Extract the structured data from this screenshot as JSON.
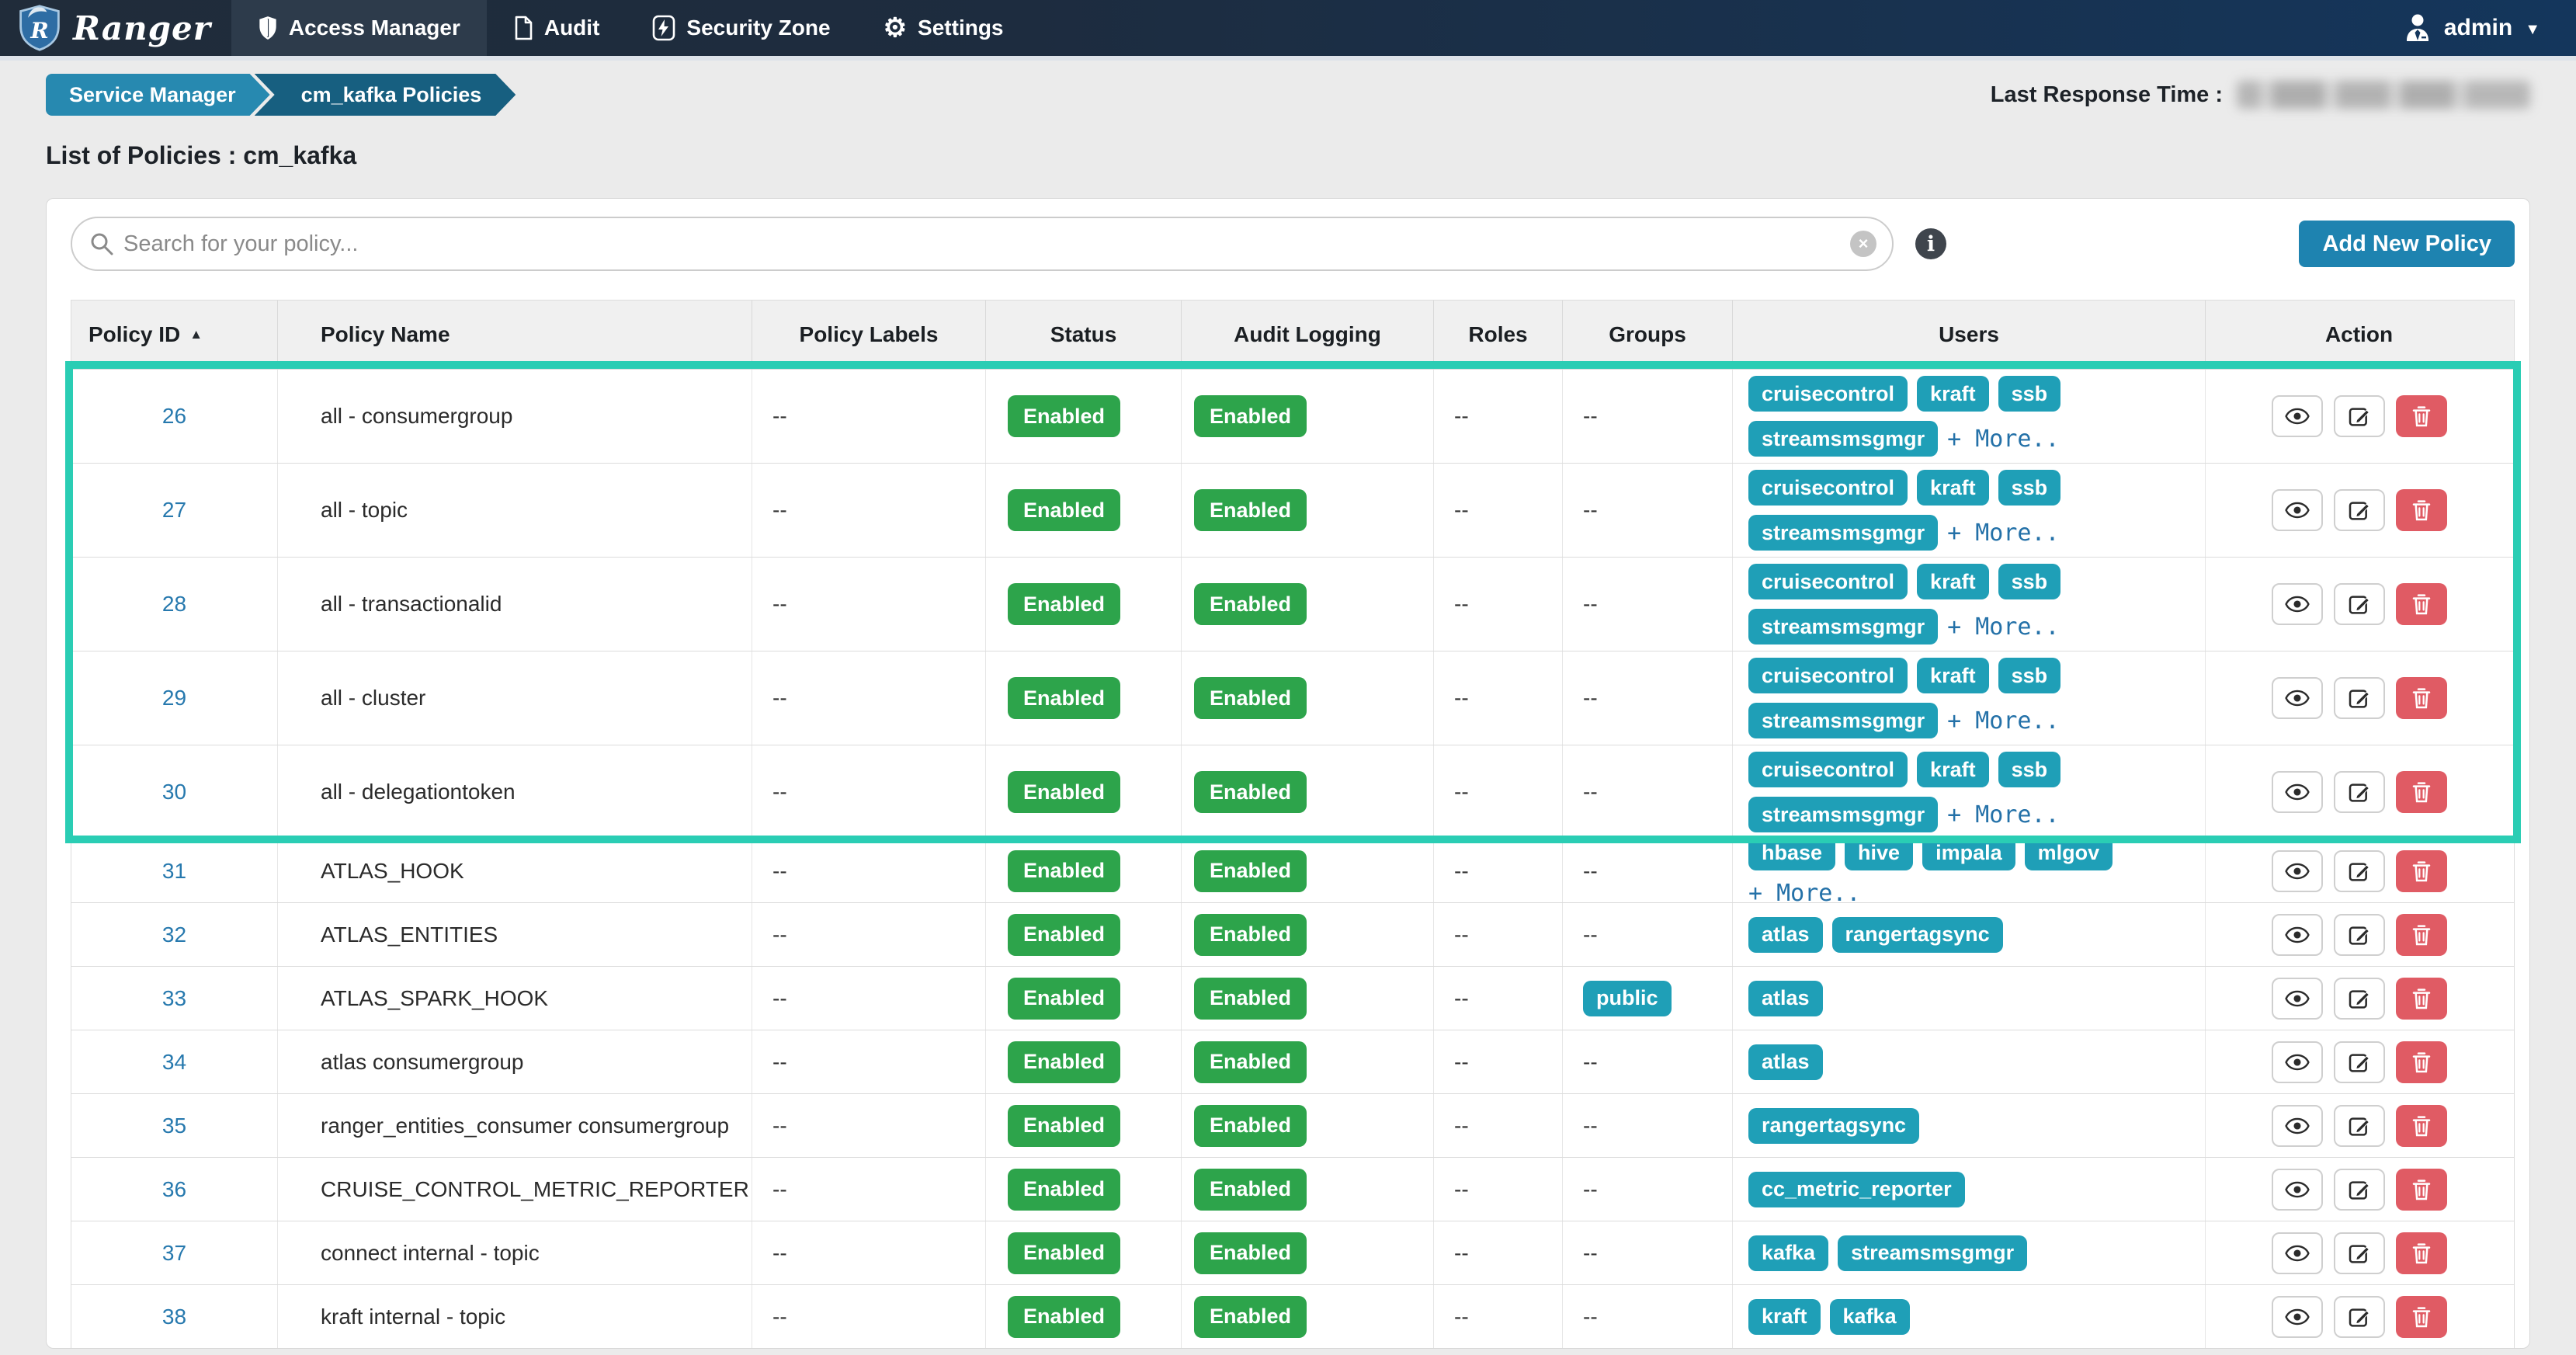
{
  "navbar": {
    "brand": "Ranger",
    "items": [
      {
        "label": "Access Manager",
        "icon": "shield-icon",
        "active": true
      },
      {
        "label": "Audit",
        "icon": "document-icon",
        "active": false
      },
      {
        "label": "Security Zone",
        "icon": "bolt-icon",
        "active": false
      },
      {
        "label": "Settings",
        "icon": "gear-icon",
        "active": false
      }
    ],
    "user": {
      "label": "admin",
      "icon": "user-icon",
      "caret": "▼"
    }
  },
  "breadcrumb": {
    "items": [
      "Service Manager",
      "cm_kafka Policies"
    ]
  },
  "last_response": {
    "label": "Last Response Time :"
  },
  "page_title": "List of Policies : cm_kafka",
  "toolbar": {
    "search_placeholder": "Search for your policy...",
    "clear_icon": "×",
    "info_icon": "i",
    "add_button": "Add New Policy"
  },
  "table": {
    "sort_arrow": "▲",
    "columns": [
      "Policy ID",
      "Policy Name",
      "Policy Labels",
      "Status",
      "Audit Logging",
      "Roles",
      "Groups",
      "Users",
      "Action"
    ],
    "action_icons": [
      "eye-icon",
      "edit-icon",
      "trash-icon"
    ],
    "rows": [
      {
        "id": "26",
        "name": "all - consumergroup",
        "labels": "--",
        "status": "Enabled",
        "audit": "Enabled",
        "roles": "--",
        "groups": "--",
        "users": [
          "cruisecontrol",
          "kraft",
          "ssb",
          "streamsmsgmgr"
        ],
        "more": "+ More..",
        "tall": true
      },
      {
        "id": "27",
        "name": "all - topic",
        "labels": "--",
        "status": "Enabled",
        "audit": "Enabled",
        "roles": "--",
        "groups": "--",
        "users": [
          "cruisecontrol",
          "kraft",
          "ssb",
          "streamsmsgmgr"
        ],
        "more": "+ More..",
        "tall": true
      },
      {
        "id": "28",
        "name": "all - transactionalid",
        "labels": "--",
        "status": "Enabled",
        "audit": "Enabled",
        "roles": "--",
        "groups": "--",
        "users": [
          "cruisecontrol",
          "kraft",
          "ssb",
          "streamsmsgmgr"
        ],
        "more": "+ More..",
        "tall": true
      },
      {
        "id": "29",
        "name": "all - cluster",
        "labels": "--",
        "status": "Enabled",
        "audit": "Enabled",
        "roles": "--",
        "groups": "--",
        "users": [
          "cruisecontrol",
          "kraft",
          "ssb",
          "streamsmsgmgr"
        ],
        "more": "+ More..",
        "tall": true
      },
      {
        "id": "30",
        "name": "all - delegationtoken",
        "labels": "--",
        "status": "Enabled",
        "audit": "Enabled",
        "roles": "--",
        "groups": "--",
        "users": [
          "cruisecontrol",
          "kraft",
          "ssb",
          "streamsmsgmgr"
        ],
        "more": "+ More..",
        "tall": true
      },
      {
        "id": "31",
        "name": "ATLAS_HOOK",
        "labels": "--",
        "status": "Enabled",
        "audit": "Enabled",
        "roles": "--",
        "groups": "--",
        "users": [
          "hbase",
          "hive",
          "impala",
          "mlgov"
        ],
        "more": "+ More..",
        "tall": false
      },
      {
        "id": "32",
        "name": "ATLAS_ENTITIES",
        "labels": "--",
        "status": "Enabled",
        "audit": "Enabled",
        "roles": "--",
        "groups": "--",
        "users": [
          "atlas",
          "rangertagsync"
        ],
        "more": null,
        "tall": false
      },
      {
        "id": "33",
        "name": "ATLAS_SPARK_HOOK",
        "labels": "--",
        "status": "Enabled",
        "audit": "Enabled",
        "roles": "--",
        "groups": [
          "public"
        ],
        "users": [
          "atlas"
        ],
        "more": null,
        "tall": false
      },
      {
        "id": "34",
        "name": "atlas consumergroup",
        "labels": "--",
        "status": "Enabled",
        "audit": "Enabled",
        "roles": "--",
        "groups": "--",
        "users": [
          "atlas"
        ],
        "more": null,
        "tall": false
      },
      {
        "id": "35",
        "name": "ranger_entities_consumer consumergroup",
        "labels": "--",
        "status": "Enabled",
        "audit": "Enabled",
        "roles": "--",
        "groups": "--",
        "users": [
          "rangertagsync"
        ],
        "more": null,
        "tall": false
      },
      {
        "id": "36",
        "name": "CRUISE_CONTROL_METRIC_REPORTER",
        "labels": "--",
        "status": "Enabled",
        "audit": "Enabled",
        "roles": "--",
        "groups": "--",
        "users": [
          "cc_metric_reporter"
        ],
        "more": null,
        "tall": false
      },
      {
        "id": "37",
        "name": "connect internal - topic",
        "labels": "--",
        "status": "Enabled",
        "audit": "Enabled",
        "roles": "--",
        "groups": "--",
        "users": [
          "kafka",
          "streamsmsgmgr"
        ],
        "more": null,
        "tall": false
      },
      {
        "id": "38",
        "name": "kraft internal - topic",
        "labels": "--",
        "status": "Enabled",
        "audit": "Enabled",
        "roles": "--",
        "groups": "--",
        "users": [
          "kraft",
          "kafka"
        ],
        "more": null,
        "tall": false
      }
    ]
  },
  "colors": {
    "accent_blue": "#1e83b0",
    "badge_teal": "#1f9fb7",
    "badge_green": "#2da44b",
    "danger_red": "#e05b64",
    "link_blue": "#2779ae",
    "highlight_teal": "#2acdb4",
    "breadcrumb_light": "#2789b0",
    "breadcrumb_dark": "#175f80"
  }
}
